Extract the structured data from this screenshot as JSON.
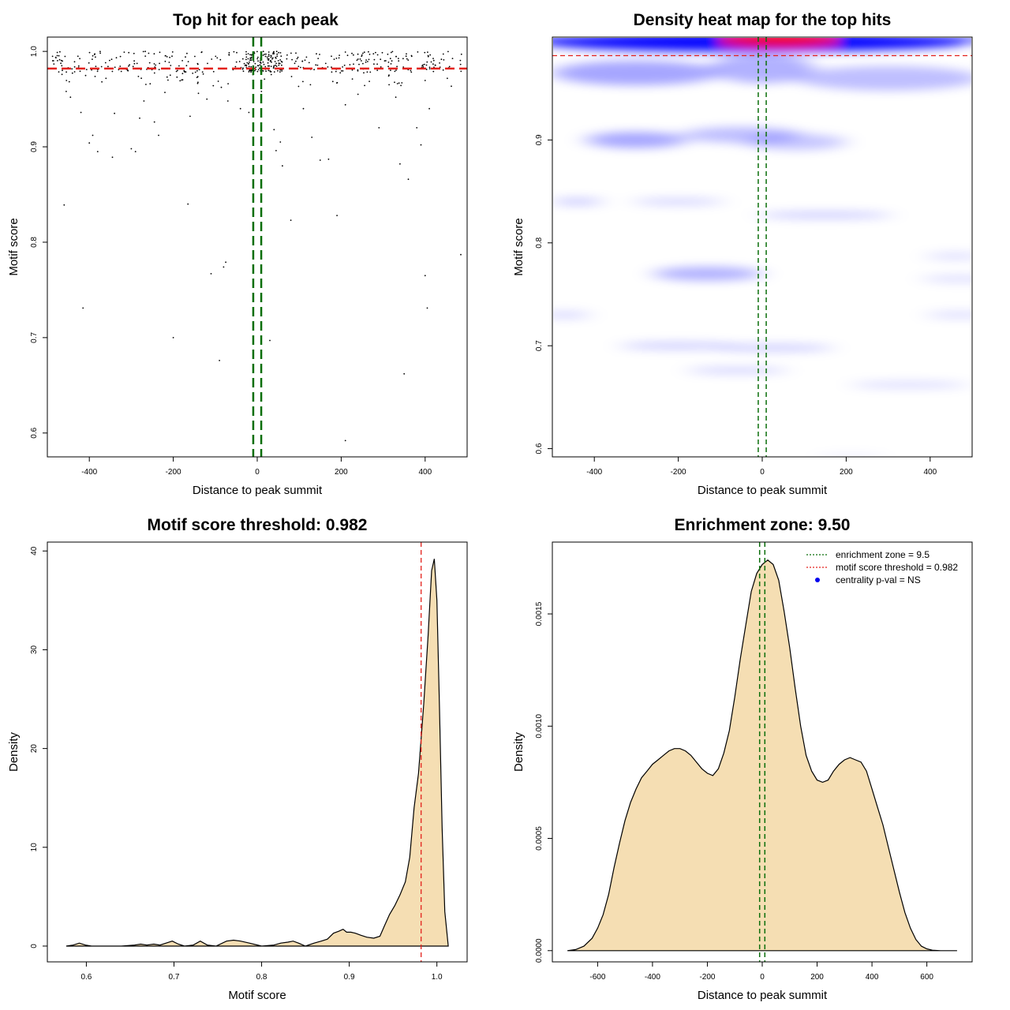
{
  "colors": {
    "threshold": "#e3211c",
    "zone": "#0a6e0a",
    "fill": "#f5deb3",
    "heat_low": "#ffffff",
    "heat_mid": "#0000ff",
    "heat_high": "#ff0000"
  },
  "chart_data": [
    {
      "id": "scatter",
      "type": "scatter",
      "title": "Top hit for each peak",
      "xlabel": "Distance to peak summit",
      "ylabel": "Motif score",
      "xlim": [
        -500,
        500
      ],
      "ylim": [
        0.575,
        1.015
      ],
      "xticks": [
        -400,
        -200,
        0,
        200,
        400
      ],
      "yticks": [
        0.6,
        0.7,
        0.8,
        0.9,
        1.0
      ],
      "xtick_labels": [
        "-400",
        "-200",
        "0",
        "200",
        "400"
      ],
      "ytick_labels": [
        "0.6",
        "0.7",
        "0.8",
        "0.9",
        "1.0"
      ],
      "threshold": 0.982,
      "zone": [
        -9.5,
        9.5
      ],
      "outliers": [
        [
          -455,
          0.958
        ],
        [
          -445,
          0.952
        ],
        [
          -420,
          0.936
        ],
        [
          -400,
          0.904
        ],
        [
          -392,
          0.912
        ],
        [
          -380,
          0.895
        ],
        [
          -345,
          0.889
        ],
        [
          -340,
          0.935
        ],
        [
          -300,
          0.898
        ],
        [
          -290,
          0.895
        ],
        [
          -280,
          0.93
        ],
        [
          -270,
          0.948
        ],
        [
          -255,
          0.966
        ],
        [
          -245,
          0.926
        ],
        [
          -235,
          0.912
        ],
        [
          -220,
          0.957
        ],
        [
          -180,
          0.97
        ],
        [
          -160,
          0.932
        ],
        [
          -140,
          0.956
        ],
        [
          -120,
          0.95
        ],
        [
          -70,
          0.948
        ],
        [
          -40,
          0.94
        ],
        [
          -20,
          0.936
        ],
        [
          10,
          0.958
        ],
        [
          40,
          0.918
        ],
        [
          45,
          0.896
        ],
        [
          55,
          0.905
        ],
        [
          60,
          0.88
        ],
        [
          110,
          0.94
        ],
        [
          130,
          0.91
        ],
        [
          150,
          0.886
        ],
        [
          170,
          0.887
        ],
        [
          210,
          0.944
        ],
        [
          240,
          0.955
        ],
        [
          290,
          0.92
        ],
        [
          330,
          0.952
        ],
        [
          340,
          0.882
        ],
        [
          360,
          0.866
        ],
        [
          380,
          0.92
        ],
        [
          390,
          0.902
        ],
        [
          410,
          0.94
        ],
        [
          -460,
          0.839
        ],
        [
          -165,
          0.84
        ],
        [
          -415,
          0.731
        ],
        [
          -200,
          0.7
        ],
        [
          -110,
          0.767
        ],
        [
          -80,
          0.774
        ],
        [
          -75,
          0.779
        ],
        [
          -90,
          0.676
        ],
        [
          30,
          0.697
        ],
        [
          80,
          0.823
        ],
        [
          190,
          0.828
        ],
        [
          210,
          0.592
        ],
        [
          350,
          0.662
        ],
        [
          400,
          0.765
        ],
        [
          405,
          0.731
        ],
        [
          485,
          0.787
        ]
      ]
    },
    {
      "id": "heatmap",
      "type": "heatmap",
      "title": "Density heat map for the top hits",
      "xlabel": "Distance to peak summit",
      "ylabel": "Motif score",
      "xlim": [
        -500,
        500
      ],
      "ylim": [
        0.592,
        1.0
      ],
      "xticks": [
        -400,
        -200,
        0,
        200,
        400
      ],
      "yticks": [
        0.6,
        0.7,
        0.8,
        0.9
      ],
      "xtick_labels": [
        "-400",
        "-200",
        "0",
        "200",
        "400"
      ],
      "ytick_labels": [
        "0.6",
        "0.7",
        "0.8",
        "0.9"
      ],
      "threshold": 0.982,
      "zone": [
        -9.5,
        9.5
      ],
      "blobs": [
        [
          -300,
          0.965,
          200,
          0.012,
          0.35
        ],
        [
          0,
          0.97,
          120,
          0.015,
          0.3
        ],
        [
          300,
          0.96,
          220,
          0.012,
          0.25
        ],
        [
          -300,
          0.9,
          120,
          0.008,
          0.35
        ],
        [
          -50,
          0.905,
          140,
          0.008,
          0.25
        ],
        [
          80,
          0.898,
          120,
          0.008,
          0.22
        ],
        [
          -440,
          0.84,
          60,
          0.004,
          0.2
        ],
        [
          -200,
          0.84,
          110,
          0.004,
          0.15
        ],
        [
          150,
          0.827,
          160,
          0.004,
          0.18
        ],
        [
          -130,
          0.77,
          130,
          0.007,
          0.3
        ],
        [
          460,
          0.787,
          70,
          0.004,
          0.12
        ],
        [
          470,
          0.765,
          90,
          0.004,
          0.12
        ],
        [
          -470,
          0.73,
          60,
          0.004,
          0.15
        ],
        [
          470,
          0.73,
          80,
          0.004,
          0.12
        ],
        [
          -200,
          0.7,
          140,
          0.004,
          0.18
        ],
        [
          30,
          0.698,
          140,
          0.004,
          0.18
        ],
        [
          -60,
          0.676,
          120,
          0.004,
          0.15
        ],
        [
          350,
          0.662,
          140,
          0.004,
          0.12
        ],
        [
          210,
          0.592,
          80,
          0.004,
          0.05
        ]
      ]
    },
    {
      "id": "density_score",
      "type": "area",
      "title": "Motif score threshold: 0.982",
      "xlabel": "Motif score",
      "ylabel": "Density",
      "xlim": [
        0.5555,
        1.0345
      ],
      "ylim": [
        -1.6,
        40.9
      ],
      "xticks": [
        0.6,
        0.7,
        0.8,
        0.9,
        1.0
      ],
      "yticks": [
        0,
        10,
        20,
        30,
        40
      ],
      "xtick_labels": [
        "0.6",
        "0.7",
        "0.8",
        "0.9",
        "1.0"
      ],
      "ytick_labels": [
        "0",
        "10",
        "20",
        "30",
        "40"
      ],
      "threshold": 0.982,
      "x": [
        0.577,
        0.585,
        0.592,
        0.599,
        0.606,
        0.62,
        0.64,
        0.655,
        0.662,
        0.669,
        0.677,
        0.684,
        0.691,
        0.698,
        0.705,
        0.712,
        0.722,
        0.73,
        0.738,
        0.748,
        0.76,
        0.768,
        0.776,
        0.786,
        0.8,
        0.814,
        0.822,
        0.83,
        0.836,
        0.842,
        0.85,
        0.86,
        0.868,
        0.875,
        0.882,
        0.888,
        0.893,
        0.897,
        0.902,
        0.907,
        0.913,
        0.92,
        0.928,
        0.935,
        0.94,
        0.946,
        0.952,
        0.958,
        0.964,
        0.969,
        0.974,
        0.979,
        0.985,
        0.99,
        0.994,
        0.997,
        1.0,
        1.003,
        1.006,
        1.009,
        1.013
      ],
      "y": [
        0,
        0.1,
        0.3,
        0.1,
        0,
        0,
        0,
        0.1,
        0.2,
        0.1,
        0.2,
        0.1,
        0.3,
        0.5,
        0.2,
        0,
        0.1,
        0.5,
        0.1,
        0,
        0.5,
        0.6,
        0.5,
        0.3,
        0,
        0.1,
        0.3,
        0.4,
        0.5,
        0.3,
        0,
        0.3,
        0.5,
        0.7,
        1.3,
        1.5,
        1.7,
        1.4,
        1.4,
        1.3,
        1.1,
        0.9,
        0.8,
        1.0,
        2.0,
        3.2,
        4.1,
        5.2,
        6.5,
        9.0,
        14.0,
        17.5,
        24.5,
        31.5,
        38.0,
        39.2,
        35.0,
        24.0,
        12.0,
        3.5,
        0
      ]
    },
    {
      "id": "density_distance",
      "type": "area",
      "title": "Enrichment zone: 9.50",
      "xlabel": "Distance to peak summit",
      "ylabel": "Density",
      "xlim": [
        -765,
        765
      ],
      "ylim": [
        -5e-05,
        0.00182
      ],
      "xticks": [
        -600,
        -400,
        -200,
        0,
        200,
        400,
        600
      ],
      "yticks": [
        0,
        0.0005,
        0.001,
        0.0015
      ],
      "xtick_labels": [
        "-600",
        "-400",
        "-200",
        "0",
        "200",
        "400",
        "600"
      ],
      "ytick_labels": [
        "0.0000",
        "0.0005",
        "0.0010",
        "0.0015"
      ],
      "zone": [
        -9.5,
        9.5
      ],
      "x": [
        -710,
        -680,
        -650,
        -620,
        -600,
        -580,
        -560,
        -540,
        -520,
        -500,
        -480,
        -460,
        -440,
        -420,
        -400,
        -380,
        -360,
        -340,
        -320,
        -300,
        -280,
        -260,
        -240,
        -220,
        -200,
        -180,
        -160,
        -140,
        -120,
        -100,
        -80,
        -60,
        -40,
        -20,
        0,
        20,
        40,
        60,
        80,
        100,
        120,
        140,
        160,
        180,
        200,
        220,
        240,
        260,
        280,
        300,
        320,
        340,
        360,
        380,
        400,
        420,
        440,
        460,
        480,
        500,
        520,
        540,
        560,
        580,
        600,
        620,
        650,
        680,
        710
      ],
      "y": [
        0,
        5e-06,
        2e-05,
        5.5e-05,
        0.0001,
        0.00016,
        0.00025,
        0.00037,
        0.00048,
        0.00058,
        0.00066,
        0.00072,
        0.00077,
        0.0008,
        0.00083,
        0.00085,
        0.00087,
        0.00089,
        0.0009,
        0.0009,
        0.00089,
        0.00087,
        0.00084,
        0.00081,
        0.00079,
        0.00078,
        0.00081,
        0.00088,
        0.00098,
        0.00113,
        0.0013,
        0.00145,
        0.0016,
        0.00168,
        0.00172,
        0.00174,
        0.00172,
        0.00165,
        0.00151,
        0.00135,
        0.00117,
        0.001,
        0.00087,
        0.0008,
        0.00076,
        0.00075,
        0.00076,
        0.0008,
        0.00083,
        0.00085,
        0.00086,
        0.00085,
        0.00084,
        0.0008,
        0.00072,
        0.00064,
        0.00056,
        0.00046,
        0.00036,
        0.00026,
        0.00017,
        0.0001,
        5e-05,
        2e-05,
        8e-06,
        2e-06,
        0,
        0,
        0
      ],
      "legend": [
        {
          "style": "dotted-green",
          "label": "enrichment zone = 9.5"
        },
        {
          "style": "dotted-red",
          "label": "motif score threshold = 0.982"
        },
        {
          "style": "dot-blue",
          "label": "centrality p-val = NS"
        }
      ]
    }
  ]
}
